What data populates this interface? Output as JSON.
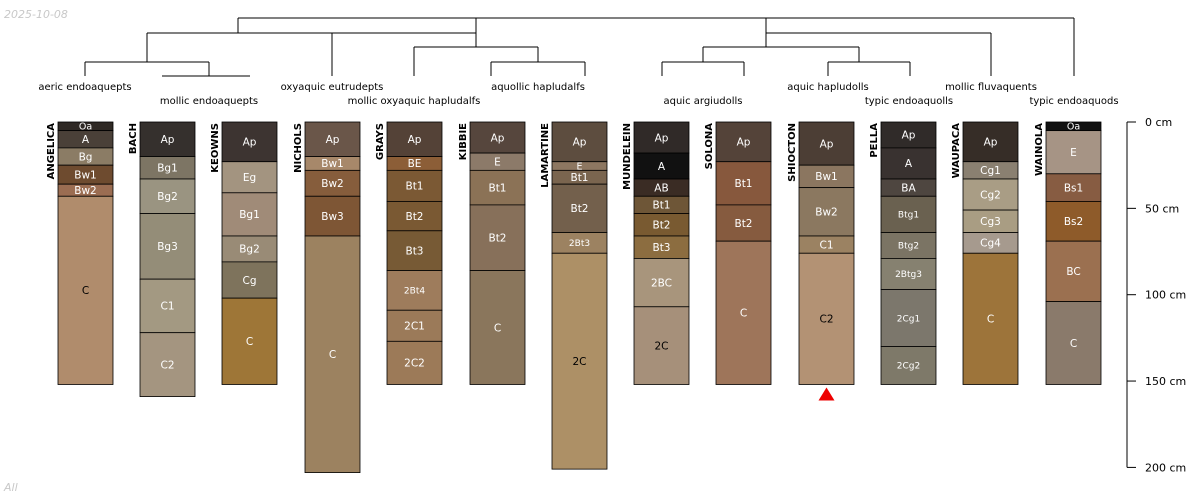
{
  "date_stamp": "2025-10-08",
  "footer_label": "All",
  "depth_axis": {
    "unit": "cm",
    "max_depth_cm": 200,
    "ticks": [
      {
        "depth": 0,
        "label": "0 cm"
      },
      {
        "depth": 50,
        "label": "50 cm"
      },
      {
        "depth": 100,
        "label": "100 cm"
      },
      {
        "depth": 150,
        "label": "150 cm"
      },
      {
        "depth": 200,
        "label": "200 cm"
      }
    ]
  },
  "subgroup_labels": [
    {
      "text": "aeric endoaquepts"
    },
    {
      "text": "mollic endoaquepts"
    },
    {
      "text": "oxyaquic eutrudepts"
    },
    {
      "text": "mollic oxyaquic hapludalfs"
    },
    {
      "text": "aquollic hapludalfs"
    },
    {
      "text": "aquic argiudolls"
    },
    {
      "text": "aquic hapludolls"
    },
    {
      "text": "typic endoaquolls"
    },
    {
      "text": "mollic fluvaquents"
    },
    {
      "text": "typic endoaquods"
    }
  ],
  "profiles": [
    {
      "name": "ANGELICA",
      "horizons": [
        {
          "name": "Oa",
          "top": 0,
          "bottom": 5,
          "color": "#2f2925",
          "text": "#ffffff"
        },
        {
          "name": "A",
          "top": 5,
          "bottom": 15,
          "color": "#4a4038",
          "text": "#ffffff"
        },
        {
          "name": "Bg",
          "top": 15,
          "bottom": 25,
          "color": "#8b7c65",
          "text": "#ffffff"
        },
        {
          "name": "Bw1",
          "top": 25,
          "bottom": 36,
          "color": "#6e4b2f",
          "text": "#ffffff"
        },
        {
          "name": "Bw2",
          "top": 36,
          "bottom": 43,
          "color": "#9b6d52",
          "text": "#ffffff"
        },
        {
          "name": "C",
          "top": 43,
          "bottom": 152,
          "color": "#b08c6c",
          "text": "#000000"
        }
      ]
    },
    {
      "name": "BACH",
      "horizons": [
        {
          "name": "Ap",
          "top": 0,
          "bottom": 20,
          "color": "#35302d",
          "text": "#ffffff"
        },
        {
          "name": "Bg1",
          "top": 20,
          "bottom": 33,
          "color": "#7d7564",
          "text": "#ffffff"
        },
        {
          "name": "Bg2",
          "top": 33,
          "bottom": 53,
          "color": "#9a9481",
          "text": "#ffffff"
        },
        {
          "name": "Bg3",
          "top": 53,
          "bottom": 91,
          "color": "#948d78",
          "text": "#ffffff"
        },
        {
          "name": "C1",
          "top": 91,
          "bottom": 122,
          "color": "#a39982",
          "text": "#ffffff"
        },
        {
          "name": "C2",
          "top": 122,
          "bottom": 159,
          "color": "#a49580",
          "text": "#ffffff"
        }
      ]
    },
    {
      "name": "KEOWNS",
      "horizons": [
        {
          "name": "Ap",
          "top": 0,
          "bottom": 23,
          "color": "#3d3431",
          "text": "#ffffff"
        },
        {
          "name": "Eg",
          "top": 23,
          "bottom": 41,
          "color": "#a39480",
          "text": "#ffffff"
        },
        {
          "name": "Bg1",
          "top": 41,
          "bottom": 66,
          "color": "#a08b78",
          "text": "#ffffff"
        },
        {
          "name": "Bg2",
          "top": 66,
          "bottom": 81,
          "color": "#998b76",
          "text": "#ffffff"
        },
        {
          "name": "Cg",
          "top": 81,
          "bottom": 102,
          "color": "#7e735c",
          "text": "#ffffff"
        },
        {
          "name": "C",
          "top": 102,
          "bottom": 152,
          "color": "#9e7637",
          "text": "#ffffff"
        }
      ]
    },
    {
      "name": "NICHOLS",
      "horizons": [
        {
          "name": "Ap",
          "top": 0,
          "bottom": 20,
          "color": "#6a5649",
          "text": "#ffffff"
        },
        {
          "name": "Bw1",
          "top": 20,
          "bottom": 28,
          "color": "#a7886a",
          "text": "#ffffff"
        },
        {
          "name": "Bw2",
          "top": 28,
          "bottom": 43,
          "color": "#865d3c",
          "text": "#ffffff"
        },
        {
          "name": "Bw3",
          "top": 43,
          "bottom": 66,
          "color": "#7e5635",
          "text": "#ffffff"
        },
        {
          "name": "C",
          "top": 66,
          "bottom": 203,
          "color": "#9c8260",
          "text": "#ffffff"
        }
      ]
    },
    {
      "name": "GRAYS",
      "horizons": [
        {
          "name": "Ap",
          "top": 0,
          "bottom": 20,
          "color": "#544237",
          "text": "#ffffff"
        },
        {
          "name": "BE",
          "top": 20,
          "bottom": 28,
          "color": "#8c5e37",
          "text": "#ffffff"
        },
        {
          "name": "Bt1",
          "top": 28,
          "bottom": 46,
          "color": "#7b5934",
          "text": "#ffffff"
        },
        {
          "name": "Bt2",
          "top": 46,
          "bottom": 63,
          "color": "#7a5933",
          "text": "#ffffff"
        },
        {
          "name": "Bt3",
          "top": 63,
          "bottom": 86,
          "color": "#775a35",
          "text": "#ffffff"
        },
        {
          "name": "2Bt4",
          "top": 86,
          "bottom": 109,
          "color": "#9e7c5c",
          "text": "#ffffff"
        },
        {
          "name": "2C1",
          "top": 109,
          "bottom": 127,
          "color": "#9b7a59",
          "text": "#ffffff"
        },
        {
          "name": "2C2",
          "top": 127,
          "bottom": 152,
          "color": "#9c7a58",
          "text": "#ffffff"
        }
      ]
    },
    {
      "name": "KIBBIE",
      "horizons": [
        {
          "name": "Ap",
          "top": 0,
          "bottom": 18,
          "color": "#56463d",
          "text": "#ffffff"
        },
        {
          "name": "E",
          "top": 18,
          "bottom": 28,
          "color": "#8c7a69",
          "text": "#ffffff"
        },
        {
          "name": "Bt1",
          "top": 28,
          "bottom": 48,
          "color": "#8b7256",
          "text": "#ffffff"
        },
        {
          "name": "Bt2",
          "top": 48,
          "bottom": 86,
          "color": "#87705a",
          "text": "#ffffff"
        },
        {
          "name": "C",
          "top": 86,
          "bottom": 152,
          "color": "#8a765c",
          "text": "#ffffff"
        }
      ]
    },
    {
      "name": "LAMARTINE",
      "horizons": [
        {
          "name": "Ap",
          "top": 0,
          "bottom": 23,
          "color": "#5d4d3f",
          "text": "#ffffff"
        },
        {
          "name": "E",
          "top": 23,
          "bottom": 28,
          "color": "#8d7761",
          "text": "#ffffff"
        },
        {
          "name": "Bt1",
          "top": 28,
          "bottom": 36,
          "color": "#7a654f",
          "text": "#ffffff"
        },
        {
          "name": "Bt2",
          "top": 36,
          "bottom": 64,
          "color": "#73604c",
          "text": "#ffffff"
        },
        {
          "name": "2Bt3",
          "top": 64,
          "bottom": 76,
          "color": "#9c8261",
          "text": "#ffffff"
        },
        {
          "name": "2C",
          "top": 76,
          "bottom": 201,
          "color": "#ad9066",
          "text": "#000000"
        }
      ]
    },
    {
      "name": "MUNDELEIN",
      "horizons": [
        {
          "name": "Ap",
          "top": 0,
          "bottom": 18,
          "color": "#302a28",
          "text": "#ffffff"
        },
        {
          "name": "A",
          "top": 18,
          "bottom": 33,
          "color": "#111111",
          "text": "#ffffff"
        },
        {
          "name": "AB",
          "top": 33,
          "bottom": 43,
          "color": "#3a2c24",
          "text": "#ffffff"
        },
        {
          "name": "Bt1",
          "top": 43,
          "bottom": 53,
          "color": "#6e5637",
          "text": "#ffffff"
        },
        {
          "name": "Bt2",
          "top": 53,
          "bottom": 66,
          "color": "#795a31",
          "text": "#ffffff"
        },
        {
          "name": "Bt3",
          "top": 66,
          "bottom": 79,
          "color": "#8c6d40",
          "text": "#ffffff"
        },
        {
          "name": "2BC",
          "top": 79,
          "bottom": 107,
          "color": "#a8957c",
          "text": "#ffffff"
        },
        {
          "name": "2C",
          "top": 107,
          "bottom": 152,
          "color": "#a6907a",
          "text": "#000000"
        }
      ]
    },
    {
      "name": "SOLONA",
      "horizons": [
        {
          "name": "Ap",
          "top": 0,
          "bottom": 23,
          "color": "#544339",
          "text": "#ffffff"
        },
        {
          "name": "Bt1",
          "top": 23,
          "bottom": 48,
          "color": "#87583d",
          "text": "#ffffff"
        },
        {
          "name": "Bt2",
          "top": 48,
          "bottom": 69,
          "color": "#865b3f",
          "text": "#ffffff"
        },
        {
          "name": "C",
          "top": 69,
          "bottom": 152,
          "color": "#9e755a",
          "text": "#ffffff"
        }
      ]
    },
    {
      "name": "SHIOCTON",
      "horizons": [
        {
          "name": "Ap",
          "top": 0,
          "bottom": 25,
          "color": "#4c3e35",
          "text": "#ffffff"
        },
        {
          "name": "Bw1",
          "top": 25,
          "bottom": 38,
          "color": "#8b7660",
          "text": "#ffffff"
        },
        {
          "name": "Bw2",
          "top": 38,
          "bottom": 66,
          "color": "#8b7860",
          "text": "#ffffff"
        },
        {
          "name": "C1",
          "top": 66,
          "bottom": 76,
          "color": "#9b8262",
          "text": "#ffffff"
        },
        {
          "name": "C2",
          "top": 76,
          "bottom": 152,
          "color": "#b39274",
          "text": "#000000"
        }
      ]
    },
    {
      "name": "PELLA",
      "horizons": [
        {
          "name": "Ap",
          "top": 0,
          "bottom": 15,
          "color": "#302b29",
          "text": "#ffffff"
        },
        {
          "name": "A",
          "top": 15,
          "bottom": 33,
          "color": "#393230",
          "text": "#ffffff"
        },
        {
          "name": "BA",
          "top": 33,
          "bottom": 43,
          "color": "#4e4640",
          "text": "#ffffff"
        },
        {
          "name": "Btg1",
          "top": 43,
          "bottom": 64,
          "color": "#6a6150",
          "text": "#ffffff"
        },
        {
          "name": "Btg2",
          "top": 64,
          "bottom": 79,
          "color": "#7b7464",
          "text": "#ffffff"
        },
        {
          "name": "2Btg3",
          "top": 79,
          "bottom": 97,
          "color": "#868170",
          "text": "#ffffff"
        },
        {
          "name": "2Cg1",
          "top": 97,
          "bottom": 130,
          "color": "#7c776c",
          "text": "#ffffff"
        },
        {
          "name": "2Cg2",
          "top": 130,
          "bottom": 152,
          "color": "#7e7969",
          "text": "#ffffff"
        }
      ]
    },
    {
      "name": "WAUPACA",
      "horizons": [
        {
          "name": "Ap",
          "top": 0,
          "bottom": 23,
          "color": "#362d27",
          "text": "#ffffff"
        },
        {
          "name": "Cg1",
          "top": 23,
          "bottom": 33,
          "color": "#8a8071",
          "text": "#ffffff"
        },
        {
          "name": "Cg2",
          "top": 33,
          "bottom": 51,
          "color": "#a99d85",
          "text": "#ffffff"
        },
        {
          "name": "Cg3",
          "top": 51,
          "bottom": 64,
          "color": "#a99d83",
          "text": "#ffffff"
        },
        {
          "name": "Cg4",
          "top": 64,
          "bottom": 76,
          "color": "#a69a8e",
          "text": "#ffffff"
        },
        {
          "name": "C",
          "top": 76,
          "bottom": 152,
          "color": "#9d743a",
          "text": "#ffffff"
        }
      ]
    },
    {
      "name": "WAINOLA",
      "horizons": [
        {
          "name": "Oa",
          "top": 0,
          "bottom": 5,
          "color": "#111111",
          "text": "#ffffff"
        },
        {
          "name": "E",
          "top": 5,
          "bottom": 30,
          "color": "#a69485",
          "text": "#ffffff"
        },
        {
          "name": "Bs1",
          "top": 30,
          "bottom": 46,
          "color": "#875c42",
          "text": "#ffffff"
        },
        {
          "name": "Bs2",
          "top": 46,
          "bottom": 69,
          "color": "#8e5b2a",
          "text": "#ffffff"
        },
        {
          "name": "BC",
          "top": 69,
          "bottom": 104,
          "color": "#9b7050",
          "text": "#ffffff"
        },
        {
          "name": "C",
          "top": 104,
          "bottom": 152,
          "color": "#8a7a6b",
          "text": "#ffffff"
        }
      ]
    }
  ],
  "marker": {
    "profile": "SHIOCTON",
    "shape": "triangle",
    "color": "#ee0000"
  },
  "colors": {
    "tree_line": "#000000",
    "profile_border": "#000000",
    "axis": "#000000"
  }
}
